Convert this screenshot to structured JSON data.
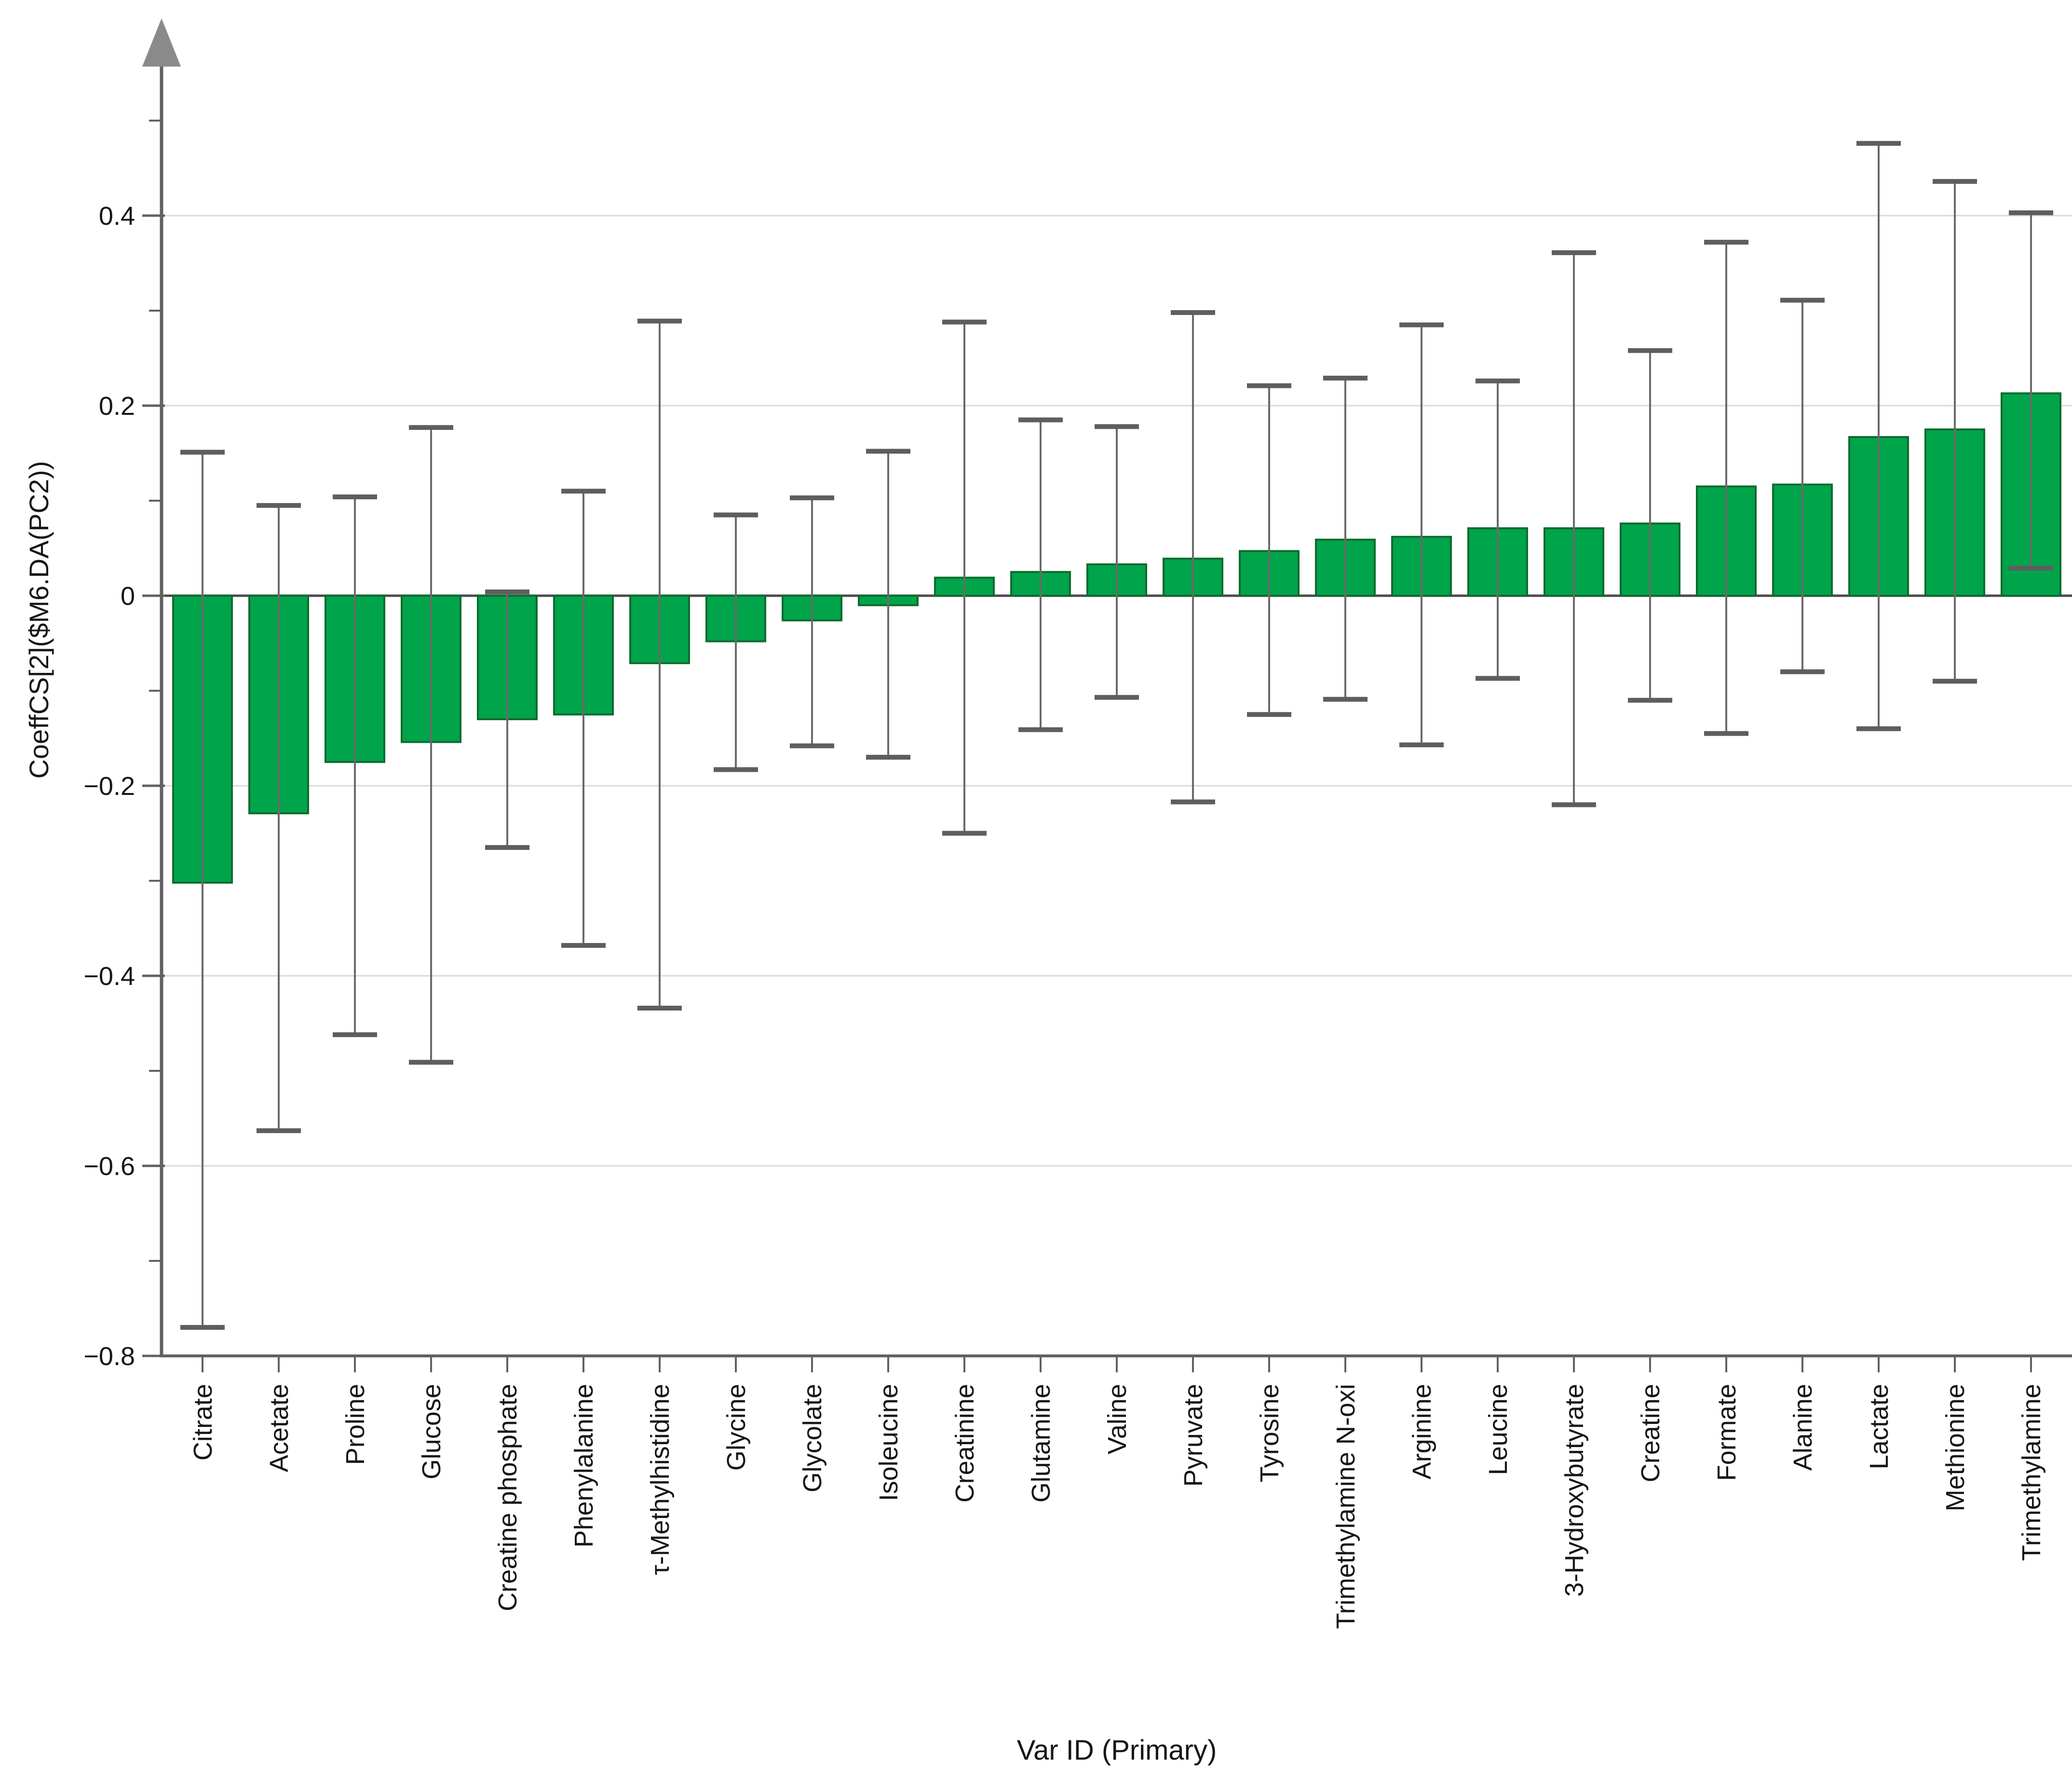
{
  "figure": {
    "background": "#ffffff"
  },
  "chart_data": {
    "type": "bar",
    "title": "",
    "xlabel": "Var ID (Primary)",
    "ylabel": "CoeffCS[2]($M6.DA(PC2))",
    "ylim": [
      -0.8,
      0.56
    ],
    "grid": true,
    "legend_position": "none",
    "yticks_major": [
      0.4,
      0.2,
      0.0,
      -0.2,
      -0.4,
      -0.6,
      -0.8
    ],
    "yticks_minor": [
      0.5,
      0.3,
      0.1,
      -0.1,
      -0.3,
      -0.5,
      -0.7
    ],
    "gridline_values": [
      0.4,
      0.2,
      -0.2,
      -0.4,
      -0.6
    ],
    "categories": [
      "Citrate",
      "Acetate",
      "Proline",
      "Glucose",
      "Creatine phosphate",
      "Phenylalanine",
      "τ-Methylhistidine",
      "Glycine",
      "Glycolate",
      "Isoleucine",
      "Creatinine",
      "Glutamine",
      "Valine",
      "Pyruvate",
      "Tyrosine",
      "Trimethylamine N-oxi",
      "Arginine",
      "Leucine",
      "3-Hydroxybutyrate",
      "Creatine",
      "Formate",
      "Alanine",
      "Lactate",
      "Methionine",
      "Trimethylamine"
    ],
    "values": [
      -0.302,
      -0.229,
      -0.175,
      -0.154,
      -0.13,
      -0.125,
      -0.071,
      -0.048,
      -0.026,
      -0.01,
      0.019,
      0.025,
      0.033,
      0.039,
      0.047,
      0.059,
      0.062,
      0.071,
      0.071,
      0.076,
      0.115,
      0.117,
      0.167,
      0.175,
      0.213
    ],
    "error_low": [
      -0.77,
      -0.563,
      -0.462,
      -0.491,
      -0.265,
      -0.368,
      -0.434,
      -0.183,
      -0.158,
      -0.17,
      -0.25,
      -0.141,
      -0.107,
      -0.217,
      -0.125,
      -0.109,
      -0.157,
      -0.087,
      -0.22,
      -0.11,
      -0.145,
      -0.08,
      -0.14,
      -0.09,
      0.029
    ],
    "error_high": [
      0.151,
      0.095,
      0.104,
      0.177,
      0.004,
      0.11,
      0.289,
      0.085,
      0.103,
      0.152,
      0.288,
      0.185,
      0.178,
      0.298,
      0.221,
      0.229,
      0.285,
      0.226,
      0.361,
      0.258,
      0.372,
      0.311,
      0.476,
      0.436,
      0.403
    ],
    "colors": {
      "bar_fill": "#00a44a",
      "bar_stroke": "#0e6b2e",
      "error_line": "#6a6a6a",
      "error_cap": "#5e5e5e",
      "grid_line": "#d9d9d9",
      "axis_line": "#616161",
      "zero_line": "#4a4a4a",
      "arrow": "#8a8a8a",
      "text": "#161616"
    }
  }
}
